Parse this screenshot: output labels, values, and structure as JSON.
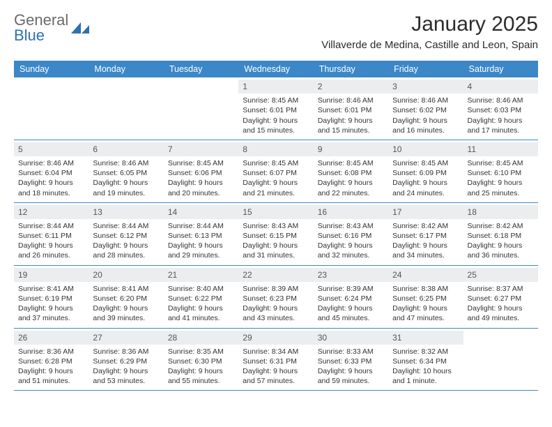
{
  "brand": {
    "name_line1": "General",
    "name_line2": "Blue",
    "accent_color": "#2f6fb3"
  },
  "header": {
    "title": "January 2025",
    "location": "Villaverde de Medina, Castille and Leon, Spain"
  },
  "colors": {
    "header_bar": "#3b87c8",
    "header_text": "#ffffff",
    "daynum_bg": "#ebedef",
    "border": "#3b87c8",
    "text": "#333333"
  },
  "weekdays": [
    "Sunday",
    "Monday",
    "Tuesday",
    "Wednesday",
    "Thursday",
    "Friday",
    "Saturday"
  ],
  "weeks": [
    [
      null,
      null,
      null,
      {
        "num": "1",
        "sunrise": "Sunrise: 8:45 AM",
        "sunset": "Sunset: 6:01 PM",
        "daylight1": "Daylight: 9 hours",
        "daylight2": "and 15 minutes."
      },
      {
        "num": "2",
        "sunrise": "Sunrise: 8:46 AM",
        "sunset": "Sunset: 6:01 PM",
        "daylight1": "Daylight: 9 hours",
        "daylight2": "and 15 minutes."
      },
      {
        "num": "3",
        "sunrise": "Sunrise: 8:46 AM",
        "sunset": "Sunset: 6:02 PM",
        "daylight1": "Daylight: 9 hours",
        "daylight2": "and 16 minutes."
      },
      {
        "num": "4",
        "sunrise": "Sunrise: 8:46 AM",
        "sunset": "Sunset: 6:03 PM",
        "daylight1": "Daylight: 9 hours",
        "daylight2": "and 17 minutes."
      }
    ],
    [
      {
        "num": "5",
        "sunrise": "Sunrise: 8:46 AM",
        "sunset": "Sunset: 6:04 PM",
        "daylight1": "Daylight: 9 hours",
        "daylight2": "and 18 minutes."
      },
      {
        "num": "6",
        "sunrise": "Sunrise: 8:46 AM",
        "sunset": "Sunset: 6:05 PM",
        "daylight1": "Daylight: 9 hours",
        "daylight2": "and 19 minutes."
      },
      {
        "num": "7",
        "sunrise": "Sunrise: 8:45 AM",
        "sunset": "Sunset: 6:06 PM",
        "daylight1": "Daylight: 9 hours",
        "daylight2": "and 20 minutes."
      },
      {
        "num": "8",
        "sunrise": "Sunrise: 8:45 AM",
        "sunset": "Sunset: 6:07 PM",
        "daylight1": "Daylight: 9 hours",
        "daylight2": "and 21 minutes."
      },
      {
        "num": "9",
        "sunrise": "Sunrise: 8:45 AM",
        "sunset": "Sunset: 6:08 PM",
        "daylight1": "Daylight: 9 hours",
        "daylight2": "and 22 minutes."
      },
      {
        "num": "10",
        "sunrise": "Sunrise: 8:45 AM",
        "sunset": "Sunset: 6:09 PM",
        "daylight1": "Daylight: 9 hours",
        "daylight2": "and 24 minutes."
      },
      {
        "num": "11",
        "sunrise": "Sunrise: 8:45 AM",
        "sunset": "Sunset: 6:10 PM",
        "daylight1": "Daylight: 9 hours",
        "daylight2": "and 25 minutes."
      }
    ],
    [
      {
        "num": "12",
        "sunrise": "Sunrise: 8:44 AM",
        "sunset": "Sunset: 6:11 PM",
        "daylight1": "Daylight: 9 hours",
        "daylight2": "and 26 minutes."
      },
      {
        "num": "13",
        "sunrise": "Sunrise: 8:44 AM",
        "sunset": "Sunset: 6:12 PM",
        "daylight1": "Daylight: 9 hours",
        "daylight2": "and 28 minutes."
      },
      {
        "num": "14",
        "sunrise": "Sunrise: 8:44 AM",
        "sunset": "Sunset: 6:13 PM",
        "daylight1": "Daylight: 9 hours",
        "daylight2": "and 29 minutes."
      },
      {
        "num": "15",
        "sunrise": "Sunrise: 8:43 AM",
        "sunset": "Sunset: 6:15 PM",
        "daylight1": "Daylight: 9 hours",
        "daylight2": "and 31 minutes."
      },
      {
        "num": "16",
        "sunrise": "Sunrise: 8:43 AM",
        "sunset": "Sunset: 6:16 PM",
        "daylight1": "Daylight: 9 hours",
        "daylight2": "and 32 minutes."
      },
      {
        "num": "17",
        "sunrise": "Sunrise: 8:42 AM",
        "sunset": "Sunset: 6:17 PM",
        "daylight1": "Daylight: 9 hours",
        "daylight2": "and 34 minutes."
      },
      {
        "num": "18",
        "sunrise": "Sunrise: 8:42 AM",
        "sunset": "Sunset: 6:18 PM",
        "daylight1": "Daylight: 9 hours",
        "daylight2": "and 36 minutes."
      }
    ],
    [
      {
        "num": "19",
        "sunrise": "Sunrise: 8:41 AM",
        "sunset": "Sunset: 6:19 PM",
        "daylight1": "Daylight: 9 hours",
        "daylight2": "and 37 minutes."
      },
      {
        "num": "20",
        "sunrise": "Sunrise: 8:41 AM",
        "sunset": "Sunset: 6:20 PM",
        "daylight1": "Daylight: 9 hours",
        "daylight2": "and 39 minutes."
      },
      {
        "num": "21",
        "sunrise": "Sunrise: 8:40 AM",
        "sunset": "Sunset: 6:22 PM",
        "daylight1": "Daylight: 9 hours",
        "daylight2": "and 41 minutes."
      },
      {
        "num": "22",
        "sunrise": "Sunrise: 8:39 AM",
        "sunset": "Sunset: 6:23 PM",
        "daylight1": "Daylight: 9 hours",
        "daylight2": "and 43 minutes."
      },
      {
        "num": "23",
        "sunrise": "Sunrise: 8:39 AM",
        "sunset": "Sunset: 6:24 PM",
        "daylight1": "Daylight: 9 hours",
        "daylight2": "and 45 minutes."
      },
      {
        "num": "24",
        "sunrise": "Sunrise: 8:38 AM",
        "sunset": "Sunset: 6:25 PM",
        "daylight1": "Daylight: 9 hours",
        "daylight2": "and 47 minutes."
      },
      {
        "num": "25",
        "sunrise": "Sunrise: 8:37 AM",
        "sunset": "Sunset: 6:27 PM",
        "daylight1": "Daylight: 9 hours",
        "daylight2": "and 49 minutes."
      }
    ],
    [
      {
        "num": "26",
        "sunrise": "Sunrise: 8:36 AM",
        "sunset": "Sunset: 6:28 PM",
        "daylight1": "Daylight: 9 hours",
        "daylight2": "and 51 minutes."
      },
      {
        "num": "27",
        "sunrise": "Sunrise: 8:36 AM",
        "sunset": "Sunset: 6:29 PM",
        "daylight1": "Daylight: 9 hours",
        "daylight2": "and 53 minutes."
      },
      {
        "num": "28",
        "sunrise": "Sunrise: 8:35 AM",
        "sunset": "Sunset: 6:30 PM",
        "daylight1": "Daylight: 9 hours",
        "daylight2": "and 55 minutes."
      },
      {
        "num": "29",
        "sunrise": "Sunrise: 8:34 AM",
        "sunset": "Sunset: 6:31 PM",
        "daylight1": "Daylight: 9 hours",
        "daylight2": "and 57 minutes."
      },
      {
        "num": "30",
        "sunrise": "Sunrise: 8:33 AM",
        "sunset": "Sunset: 6:33 PM",
        "daylight1": "Daylight: 9 hours",
        "daylight2": "and 59 minutes."
      },
      {
        "num": "31",
        "sunrise": "Sunrise: 8:32 AM",
        "sunset": "Sunset: 6:34 PM",
        "daylight1": "Daylight: 10 hours",
        "daylight2": "and 1 minute."
      },
      null
    ]
  ]
}
